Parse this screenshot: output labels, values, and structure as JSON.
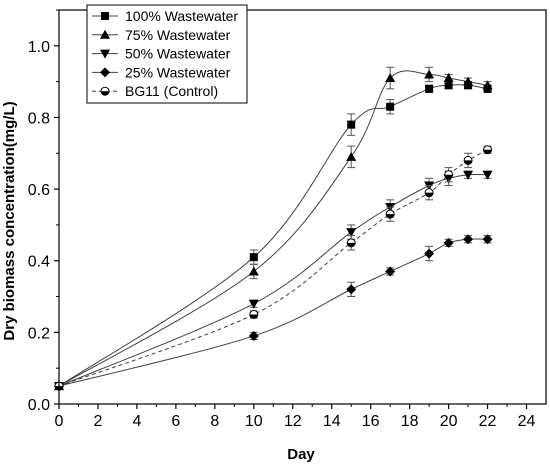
{
  "chart_data": {
    "type": "line",
    "title": "",
    "xlabel": "Day",
    "ylabel": "Dry biomass concentration(mg/L)",
    "xlim": [
      0,
      25
    ],
    "ylim": [
      0,
      1.1
    ],
    "x_ticks": [
      0,
      2,
      4,
      6,
      8,
      10,
      12,
      14,
      16,
      18,
      20,
      22,
      24
    ],
    "y_ticks": [
      0.0,
      0.2,
      0.4,
      0.6,
      0.8,
      1.0
    ],
    "y_tick_labels": [
      "0.0",
      "0.2",
      "0.4",
      "0.6",
      "0.8",
      "1.0"
    ],
    "grid": false,
    "legend_position": "top-left",
    "series": [
      {
        "name": "100% Wastewater",
        "marker": "square",
        "line_style": "solid",
        "color": "#404040",
        "x": [
          0,
          10,
          15,
          17,
          19,
          20,
          21,
          22
        ],
        "y": [
          0.05,
          0.41,
          0.78,
          0.83,
          0.88,
          0.89,
          0.89,
          0.88
        ],
        "err": [
          0,
          0.02,
          0.03,
          0.02,
          0.01,
          0.01,
          0.01,
          0.01
        ]
      },
      {
        "name": "75% Wastewater",
        "marker": "triangle-up",
        "line_style": "solid",
        "color": "#404040",
        "x": [
          0,
          10,
          15,
          17,
          19,
          20,
          21,
          22
        ],
        "y": [
          0.05,
          0.37,
          0.69,
          0.91,
          0.92,
          0.91,
          0.9,
          0.89
        ],
        "err": [
          0,
          0.02,
          0.03,
          0.03,
          0.02,
          0.01,
          0.01,
          0.01
        ]
      },
      {
        "name": "50% Wastewater",
        "marker": "triangle-down",
        "line_style": "solid",
        "color": "#404040",
        "x": [
          0,
          10,
          15,
          17,
          19,
          20,
          21,
          22
        ],
        "y": [
          0.05,
          0.28,
          0.48,
          0.55,
          0.61,
          0.63,
          0.64,
          0.64
        ],
        "err": [
          0,
          0.01,
          0.02,
          0.02,
          0.02,
          0.02,
          0.01,
          0.01
        ]
      },
      {
        "name": "25% Wastewater",
        "marker": "diamond",
        "line_style": "solid",
        "color": "#404040",
        "x": [
          0,
          10,
          15,
          17,
          19,
          20,
          21,
          22
        ],
        "y": [
          0.05,
          0.19,
          0.32,
          0.37,
          0.42,
          0.45,
          0.46,
          0.46
        ],
        "err": [
          0,
          0.01,
          0.02,
          0.01,
          0.02,
          0.01,
          0.01,
          0.01
        ]
      },
      {
        "name": "BG11 (Control)",
        "marker": "half-circle",
        "line_style": "dashed",
        "color": "#404040",
        "x": [
          0,
          10,
          15,
          17,
          19,
          20,
          21,
          22
        ],
        "y": [
          0.05,
          0.25,
          0.45,
          0.53,
          0.59,
          0.64,
          0.68,
          0.71
        ],
        "err": [
          0,
          0.01,
          0.02,
          0.02,
          0.02,
          0.02,
          0.02,
          0.01
        ]
      }
    ]
  }
}
